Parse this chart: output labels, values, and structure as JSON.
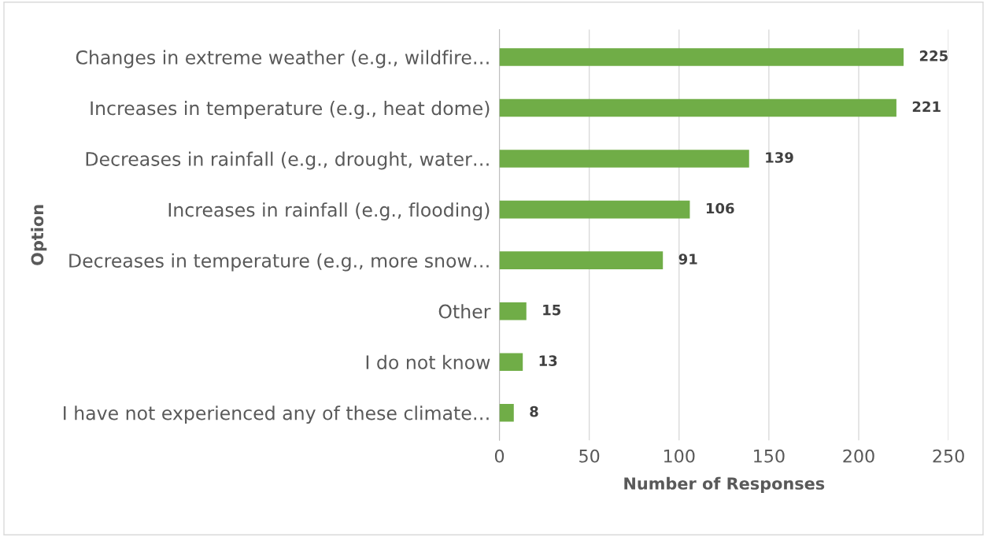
{
  "chart_data": {
    "type": "bar",
    "orientation": "horizontal",
    "xlabel": "Number of Responses",
    "ylabel": "Option",
    "categories": [
      "Changes in extreme weather (e.g., wildfire…",
      "Increases in temperature (e.g., heat dome)",
      "Decreases in rainfall (e.g., drought, water…",
      "Increases in rainfall (e.g., flooding)",
      "Decreases in temperature (e.g., more snow…",
      "Other",
      "I do not know",
      "I have not experienced any of these climate…"
    ],
    "values": [
      225,
      221,
      139,
      106,
      91,
      15,
      13,
      8
    ],
    "color": "#70ad47",
    "xlim": [
      0,
      250
    ],
    "xticks": [
      0,
      50,
      100,
      150,
      200,
      250
    ],
    "grid": "x",
    "data_labels": true
  }
}
